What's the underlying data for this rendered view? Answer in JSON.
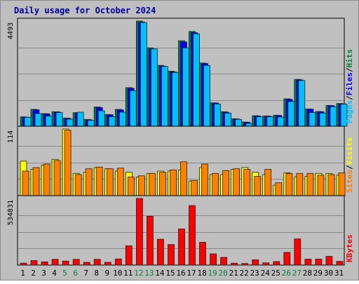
{
  "chart_data": {
    "type": "bar",
    "title": "Daily usage for October 2024",
    "categories": [
      "1",
      "2",
      "3",
      "4",
      "5",
      "6",
      "7",
      "8",
      "9",
      "10",
      "11",
      "12",
      "13",
      "14",
      "15",
      "16",
      "17",
      "18",
      "19",
      "20",
      "21",
      "22",
      "23",
      "24",
      "25",
      "26",
      "27",
      "28",
      "29",
      "30",
      "31"
    ],
    "weekend_days": [
      "5",
      "6",
      "12",
      "13",
      "19",
      "20",
      "26",
      "27"
    ],
    "panels": [
      {
        "id": "hits",
        "max_label": "4493",
        "ylim": [
          0,
          4493
        ],
        "grid": true,
        "legend": [
          "Pages",
          "Files",
          "Hits"
        ],
        "series": [
          {
            "name": "Hits",
            "color": "#008040",
            "values": [
              400,
              720,
              540,
              620,
              350,
              580,
              290,
              820,
              500,
              720,
              1650,
              4493,
              3350,
              2600,
              2350,
              3650,
              4050,
              2700,
              1000,
              620,
              320,
              180,
              450,
              440,
              470,
              1170,
              2000,
              740,
              630,
              890,
              970
            ]
          },
          {
            "name": "Files",
            "color": "#0000ff",
            "values": [
              390,
              700,
              530,
              610,
              340,
              560,
              280,
              800,
              490,
              700,
              1620,
              4450,
              3300,
              2570,
              2320,
              3600,
              4000,
              2680,
              990,
              600,
              310,
              170,
              440,
              430,
              460,
              1150,
              1980,
              730,
              620,
              880,
              960
            ]
          },
          {
            "name": "Pages",
            "color": "#00c0ff",
            "values": [
              380,
              540,
              430,
              580,
              300,
              600,
              250,
              660,
              400,
              600,
              1520,
              4430,
              3300,
              2550,
              2290,
              3350,
              3950,
              2600,
              950,
              560,
              290,
              120,
              400,
              400,
              390,
              1050,
              1950,
              580,
              560,
              830,
              940
            ]
          }
        ]
      },
      {
        "id": "visits",
        "max_label": "114",
        "ylim": [
          0,
          114
        ],
        "grid": true,
        "legend": [
          "Sites",
          "Visits"
        ],
        "series": [
          {
            "name": "Visits",
            "color": "#ffff00",
            "values": [
              59,
              45,
              52,
              62,
              114,
              38,
              40,
              48,
              46,
              42,
              40,
              32,
              38,
              42,
              42,
              44,
              25,
              48,
              36,
              36,
              45,
              48,
              40,
              36,
              18,
              39,
              32,
              33,
              38,
              38,
              35
            ]
          },
          {
            "name": "Sites",
            "color": "#ff8000",
            "values": [
              42,
              48,
              54,
              60,
              112,
              36,
              46,
              49,
              46,
              47,
              32,
              34,
              38,
              40,
              44,
              58,
              26,
              54,
              38,
              43,
              46,
              45,
              33,
              45,
              22,
              38,
              38,
              38,
              35,
              36,
              39
            ]
          }
        ]
      },
      {
        "id": "kbytes",
        "max_label": "534831",
        "ylim": [
          0,
          534831
        ],
        "grid": true,
        "legend": [
          "KBytes"
        ],
        "series": [
          {
            "name": "KBytes",
            "color": "#ff0000",
            "values": [
              16000,
              36000,
              26000,
              46000,
              32000,
              46000,
              22000,
              46000,
              22000,
              49000,
              155000,
              534831,
              392000,
              208000,
              165000,
              290000,
              478000,
              183000,
              90000,
              62000,
              15000,
              13000,
              42000,
              18000,
              28000,
              102000,
              210000,
              48000,
              48000,
              70000,
              30000
            ]
          }
        ]
      }
    ]
  }
}
